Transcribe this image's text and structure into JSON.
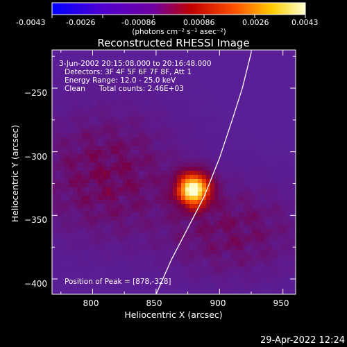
{
  "colorbar": {
    "tick_labels": [
      "-0.0043",
      "-0.0026",
      "-0.00086",
      "0.00086",
      "0.0026",
      "0.0043"
    ],
    "unit_label": "(photons cm⁻² s⁻¹ asec⁻²)",
    "range": [
      -0.0043,
      0.0043
    ],
    "colors": [
      "#0000ff",
      "#5000d0",
      "#7000a0",
      "#c00000",
      "#ff5000",
      "#ffcc00",
      "#ffffd0"
    ]
  },
  "header": {
    "title": "Reconstructed RHESSI Image",
    "info_lines": [
      "3-Jun-2002 20:15:08.000 to 20:16:48.000",
      "Detectors: 3F 4F 5F 6F 7F 8F, Att 1",
      "Energy Range: 12.0 - 25.0 keV",
      "Clean      Total counts: 2.46E+03"
    ],
    "peak_label": "Position of Peak = [878,-328]"
  },
  "footer": {
    "timestamp": "29-Apr-2022 12:24"
  },
  "chart_data": {
    "type": "heatmap",
    "title": "Reconstructed RHESSI Image",
    "xlabel": "Heliocentric X (arcsec)",
    "ylabel": "Heliocentric Y (arcsec)",
    "xlim": [
      768,
      960
    ],
    "ylim": [
      -412,
      -220
    ],
    "x_ticks": [
      800,
      850,
      900,
      950
    ],
    "y_ticks": [
      -250,
      -300,
      -350,
      -400
    ],
    "x_tick_labels": [
      "800",
      "850",
      "900",
      "950"
    ],
    "y_tick_labels": [
      "−250",
      "−300",
      "−350",
      "−400"
    ],
    "peak": {
      "x": 878,
      "y": -328
    },
    "limb_curve": [
      [
        850,
        -412
      ],
      [
        862,
        -385
      ],
      [
        875,
        -360
      ],
      [
        888,
        -335
      ],
      [
        900,
        -305
      ],
      [
        910,
        -275
      ],
      [
        918,
        -250
      ],
      [
        925,
        -222
      ]
    ],
    "grid": false
  }
}
